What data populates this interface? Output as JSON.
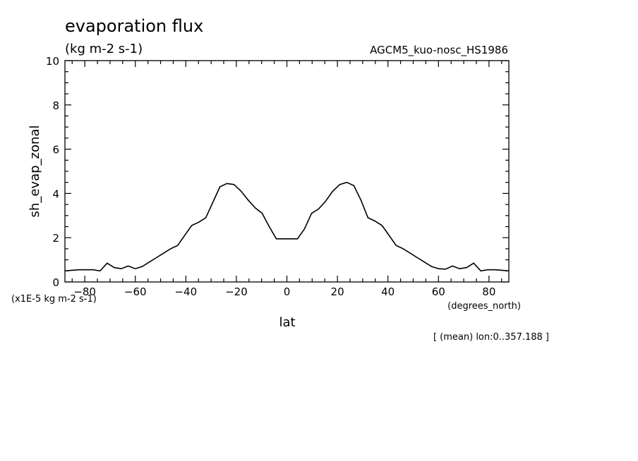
{
  "chart_data": {
    "type": "line",
    "title": "evaporation flux",
    "units": "(kg m-2 s-1)",
    "experiment": "AGCM5_kuo-nosc_HS1986",
    "ylabel": "sh_evap_zonal",
    "xlabel": "lat",
    "x_units": "(degrees_north)",
    "scale_note": "(x1E-5 kg m-2 s-1)",
    "footer": "[ (mean) lon:0..357.188 ]",
    "xlim": [
      -87.8638,
      87.8638
    ],
    "ylim": [
      0,
      10
    ],
    "x_ticks": [
      -80,
      -60,
      -40,
      -20,
      0,
      20,
      40,
      60,
      80
    ],
    "y_ticks": [
      0,
      2,
      4,
      6,
      8,
      10
    ],
    "grid": false,
    "series": [
      {
        "x": [
          -87.86,
          -85.1,
          -82.31,
          -79.53,
          -76.74,
          -73.95,
          -71.16,
          -68.37,
          -65.58,
          -62.79,
          -60.0,
          -57.21,
          -54.42,
          -51.63,
          -48.84,
          -46.04,
          -43.26,
          -40.47,
          -37.67,
          -34.88,
          -32.09,
          -29.3,
          -26.51,
          -23.72,
          -20.93,
          -18.14,
          -15.35,
          -12.56,
          -9.77,
          -6.98,
          -4.19,
          -1.4,
          1.4,
          4.19,
          6.98,
          9.77,
          12.56,
          15.35,
          18.14,
          20.93,
          23.72,
          26.51,
          29.3,
          32.09,
          34.88,
          37.67,
          40.47,
          43.26,
          46.04,
          48.84,
          51.63,
          54.42,
          57.21,
          60.0,
          62.79,
          65.58,
          68.37,
          71.16,
          73.95,
          76.74,
          79.53,
          82.31,
          85.1,
          87.86
        ],
        "y": [
          0.5,
          0.53,
          0.55,
          0.55,
          0.55,
          0.5,
          0.85,
          0.65,
          0.6,
          0.72,
          0.6,
          0.7,
          0.9,
          1.1,
          1.3,
          1.5,
          1.65,
          2.1,
          2.55,
          2.7,
          2.9,
          3.6,
          4.3,
          4.45,
          4.4,
          4.1,
          3.7,
          3.35,
          3.1,
          2.5,
          1.95,
          1.95,
          1.95,
          1.95,
          2.4,
          3.1,
          3.3,
          3.65,
          4.1,
          4.4,
          4.5,
          4.35,
          3.7,
          2.9,
          2.75,
          2.55,
          2.1,
          1.65,
          1.5,
          1.3,
          1.1,
          0.9,
          0.7,
          0.6,
          0.58,
          0.72,
          0.6,
          0.65,
          0.85,
          0.5,
          0.55,
          0.55,
          0.53,
          0.5
        ]
      }
    ]
  }
}
